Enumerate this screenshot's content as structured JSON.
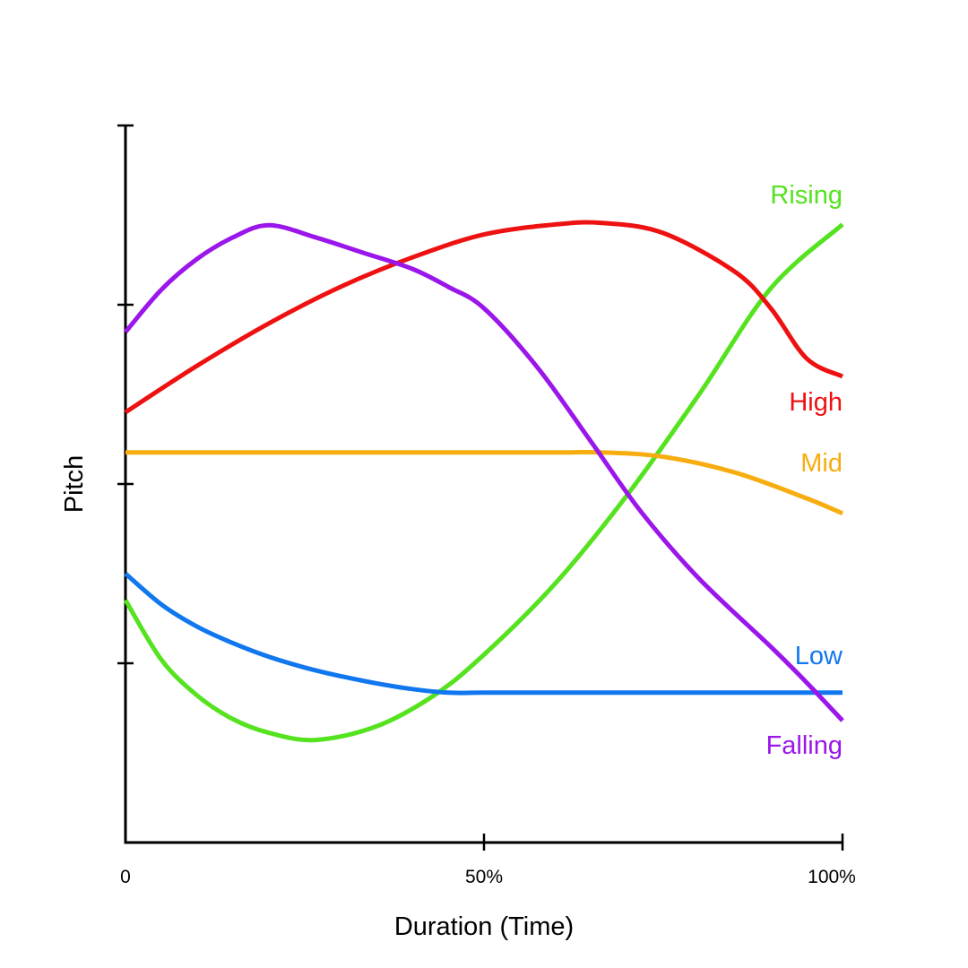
{
  "chart_data": {
    "type": "line",
    "xlabel": "Duration (Time)",
    "ylabel": "Pitch",
    "x_tick_labels": [
      "0",
      "50%",
      "100%"
    ],
    "xlim": [
      0,
      100
    ],
    "ylim": [
      0,
      100
    ],
    "grid": false,
    "legend": "inline labels at right end of each line",
    "series": [
      {
        "name": "Rising",
        "color": "#55e21f",
        "x": [
          0,
          5,
          10,
          15,
          20,
          26.5,
          35,
          43,
          50,
          60,
          70,
          80,
          90,
          100
        ],
        "y": [
          33.8,
          25.5,
          20.5,
          17.2,
          15.3,
          14.3,
          16.2,
          20.5,
          26.2,
          36.2,
          48.5,
          62.5,
          77.3,
          86.2
        ]
      },
      {
        "name": "High",
        "color": "#ee1111",
        "x": [
          0,
          10,
          20,
          30,
          40,
          50,
          60,
          66.5,
          75,
          85,
          90,
          95,
          100
        ],
        "y": [
          60,
          66.5,
          72.4,
          77.5,
          81.6,
          84.8,
          86.2,
          86.4,
          85,
          79.6,
          74.5,
          67.5,
          65
        ]
      },
      {
        "name": "Mid",
        "color": "#f7ad0f",
        "x": [
          0,
          20,
          40,
          60,
          66.5,
          75,
          85,
          95,
          100
        ],
        "y": [
          54.4,
          54.4,
          54.4,
          54.4,
          54.4,
          53.8,
          51.6,
          48,
          45.9
        ]
      },
      {
        "name": "Low",
        "color": "#1177ee",
        "x": [
          0,
          5,
          10,
          15,
          20,
          25,
          30,
          35,
          40,
          45,
          50,
          60,
          70,
          80,
          90,
          100
        ],
        "y": [
          37.5,
          33.2,
          30.1,
          27.8,
          25.9,
          24.4,
          23.2,
          22.2,
          21.4,
          20.9,
          20.9,
          20.9,
          20.9,
          20.9,
          20.9,
          20.9
        ]
      },
      {
        "name": "Falling",
        "color": "#9b16ea",
        "x": [
          0,
          5,
          10,
          15,
          20,
          26.5,
          33,
          40,
          45,
          50,
          57.5,
          65,
          72,
          80,
          90,
          95,
          100
        ],
        "y": [
          71.2,
          77.1,
          81.4,
          84.4,
          86.1,
          84.4,
          82.3,
          80,
          77.5,
          74.5,
          66.2,
          55.8,
          46,
          36.8,
          27.3,
          22.3,
          17
        ]
      }
    ]
  }
}
